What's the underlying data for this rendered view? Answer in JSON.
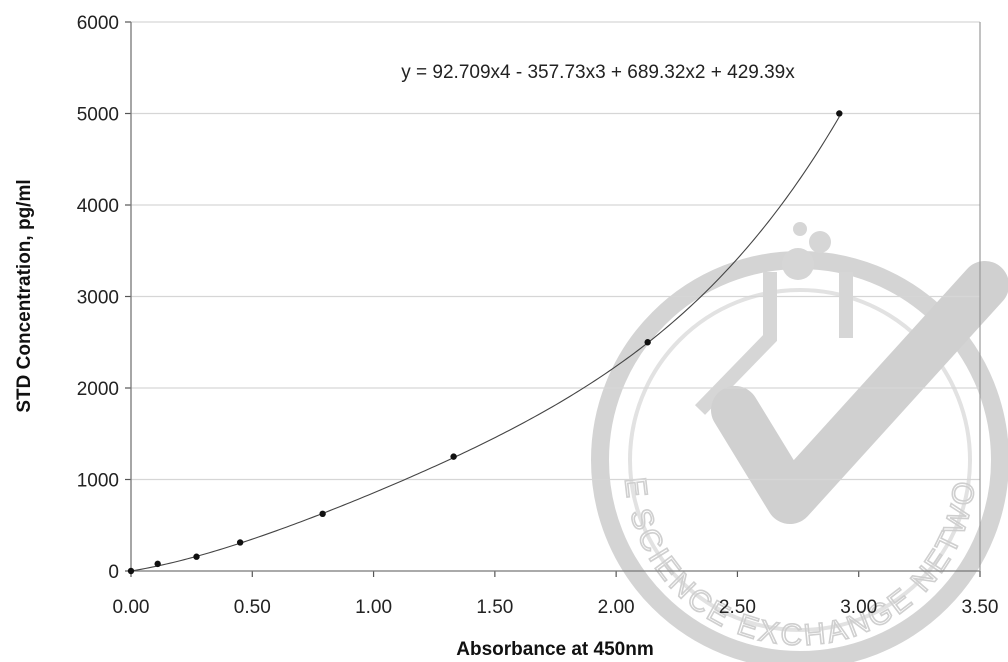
{
  "chart_data": {
    "type": "scatter",
    "xlabel": "Absorbance at 450nm",
    "ylabel": "STD Concentration, pg/ml",
    "xlim": [
      0,
      3.5
    ],
    "ylim": [
      0,
      6000
    ],
    "x_ticks": [
      "0.00",
      "0.50",
      "1.00",
      "1.50",
      "2.00",
      "2.50",
      "3.00",
      "3.50"
    ],
    "y_ticks": [
      "0",
      "1000",
      "2000",
      "3000",
      "4000",
      "5000",
      "6000"
    ],
    "grid": "horizontal",
    "series": [
      {
        "points": [
          {
            "x": 0.0,
            "y": 0
          },
          {
            "x": 0.11,
            "y": 78
          },
          {
            "x": 0.27,
            "y": 156
          },
          {
            "x": 0.45,
            "y": 312
          },
          {
            "x": 0.79,
            "y": 625
          },
          {
            "x": 1.33,
            "y": 1250
          },
          {
            "x": 2.13,
            "y": 2500
          },
          {
            "x": 2.92,
            "y": 5000
          }
        ]
      }
    ],
    "trendline": {
      "type": "polynomial",
      "coefficients": [
        92.709,
        -357.73,
        689.32,
        429.39,
        0
      ],
      "x_range": [
        0,
        2.92
      ],
      "equation_label": "y = 92.709x4 - 357.73x3 + 689.32x2 + 429.39x"
    }
  },
  "watermark": {
    "text": "THE SCIENCE EXCHANGE NETWORK",
    "color": "#cfcfcf"
  }
}
